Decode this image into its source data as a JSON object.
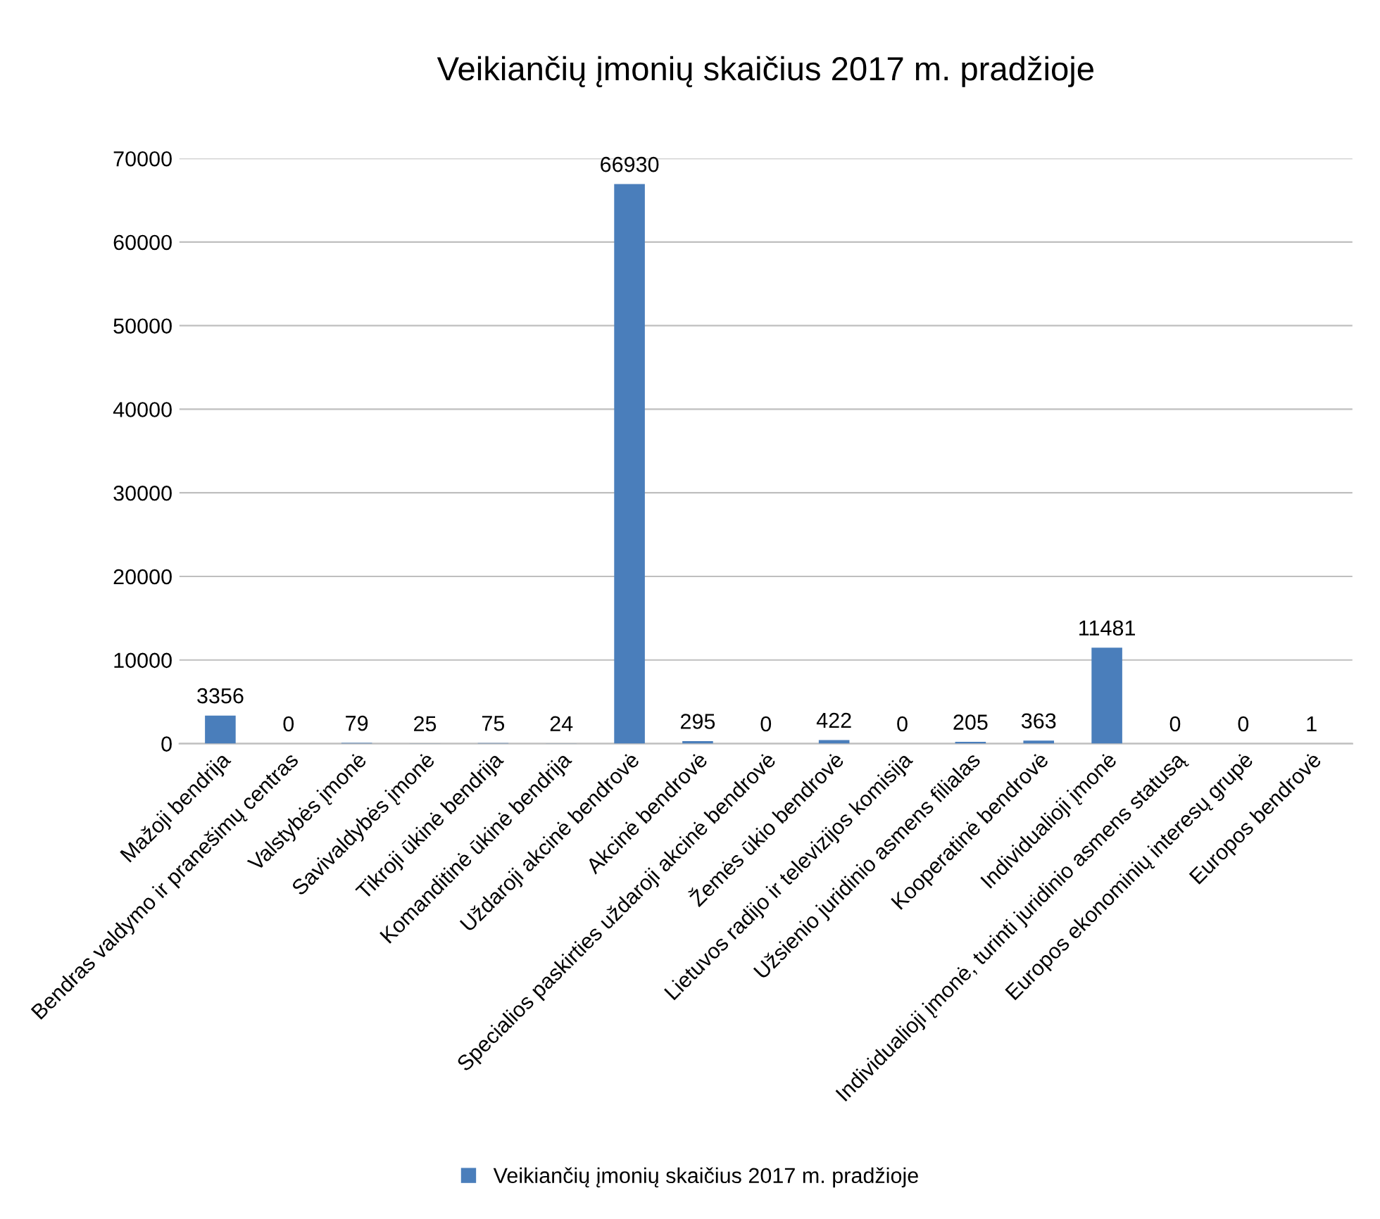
{
  "chart_data": {
    "type": "bar",
    "title": "Veikiančių įmonių skaičius 2017 m. pradžioje",
    "categories": [
      "Mažoji bendrija",
      "Bendras valdymo ir pranešimų centras",
      "Valstybės įmonė",
      "Savivaldybės įmonė",
      "Tikroji ūkinė bendrija",
      "Komanditinė ūkinė bendrija",
      "Uždaroji akcinė bendrovė",
      "Akcinė bendrovė",
      "Specialios paskirties uždaroji akcinė bendrovė",
      "Žemės ūkio bendrovė",
      "Lietuvos radijo ir televizijos komisija",
      "Užsienio juridinio asmens filialas",
      "Kooperatinė bendrovė",
      "Individualioji įmonė",
      "Individualioji įmonė, turinti juridinio asmens statusą",
      "Europos ekonominių interesų grupė",
      "Europos bendrovė"
    ],
    "series": [
      {
        "name": "Veikiančių įmonių skaičius 2017 m. pradžioje",
        "color": "#4a7ebb",
        "values": [
          3356,
          0,
          79,
          25,
          75,
          24,
          66930,
          295,
          0,
          422,
          0,
          205,
          363,
          11481,
          0,
          0,
          1
        ]
      }
    ],
    "ylim": [
      0,
      70000
    ],
    "yticks": [
      0,
      10000,
      20000,
      30000,
      40000,
      50000,
      60000,
      70000
    ],
    "grid": "y",
    "legend": "bottom",
    "data_labels": true
  }
}
